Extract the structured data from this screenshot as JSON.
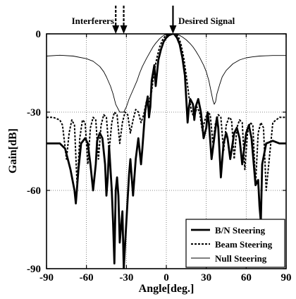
{
  "chart_data": {
    "type": "line",
    "title": "",
    "xlabel": "Angle[deg.]",
    "ylabel": "Gain[dB]",
    "xlim": [
      -90,
      90
    ],
    "ylim": [
      -90,
      0
    ],
    "xticks": [
      -90,
      -60,
      -30,
      0,
      30,
      60,
      90
    ],
    "yticks": [
      0,
      -30,
      -60,
      -90
    ],
    "xtick_labels": [
      "-90",
      "-60",
      "-30",
      "0",
      "30",
      "60",
      "90"
    ],
    "ytick_labels": [
      "0",
      "-30",
      "-60",
      "-90"
    ],
    "grid": true,
    "legend_position": "bottom-right",
    "annotations": {
      "interferers": {
        "label": "Interferers",
        "angles": [
          -38,
          -32
        ]
      },
      "desired": {
        "label": "Desired Signal",
        "angle": 5
      }
    },
    "series": [
      {
        "name": "B/N Steering",
        "style": "thick",
        "x": [
          -90,
          -80,
          -76,
          -72,
          -69,
          -68,
          -66,
          -64,
          -61,
          -59,
          -57,
          -55,
          -53,
          -52,
          -50,
          -48,
          -46,
          -45,
          -44,
          -43,
          -41,
          -40,
          -39,
          -38,
          -37,
          -36,
          -35,
          -33,
          -32,
          -30,
          -28,
          -27,
          -26,
          -25,
          -23,
          -21,
          -20,
          -19,
          -18,
          -16,
          -14,
          -13,
          -12,
          -11,
          -9,
          -8,
          -6,
          -4,
          -2,
          0,
          2,
          4,
          5,
          6,
          8,
          10,
          12,
          14,
          15,
          16,
          17,
          18,
          20,
          21,
          22,
          24,
          26,
          28,
          30,
          31,
          32,
          34,
          36,
          38,
          39,
          41,
          43,
          45,
          46,
          48,
          51,
          53,
          55,
          57,
          60,
          62,
          64,
          67,
          69,
          70,
          71,
          72,
          75,
          80,
          85,
          90
        ],
        "y": [
          -42,
          -42,
          -44,
          -52,
          -60,
          -65,
          -52,
          -42,
          -40,
          -42,
          -50,
          -60,
          -50,
          -41,
          -38,
          -40,
          -50,
          -62,
          -55,
          -43,
          -60,
          -72,
          -88,
          -60,
          -55,
          -62,
          -80,
          -68,
          -90,
          -72,
          -54,
          -48,
          -55,
          -62,
          -48,
          -40,
          -45,
          -50,
          -44,
          -30,
          -24,
          -32,
          -28,
          -18,
          -12,
          -20,
          -10,
          -6,
          -3,
          -1.5,
          -0.5,
          -0.1,
          0,
          -0.1,
          -1.5,
          -4,
          -9,
          -16,
          -25,
          -34,
          -28,
          -25,
          -27,
          -33,
          -28,
          -25,
          -30,
          -40,
          -36,
          -30,
          -34,
          -48,
          -40,
          -32,
          -36,
          -55,
          -42,
          -38,
          -40,
          -48,
          -38,
          -36,
          -40,
          -50,
          -38,
          -35,
          -40,
          -58,
          -56,
          -66,
          -72,
          -50,
          -42,
          -41,
          -42,
          -42
        ]
      },
      {
        "name": "Beam Steering",
        "style": "dashed",
        "x": [
          -90,
          -85,
          -80,
          -78,
          -75,
          -73,
          -71,
          -69,
          -67,
          -65,
          -63,
          -61,
          -59,
          -57,
          -55,
          -53,
          -51,
          -49,
          -47,
          -45,
          -43,
          -41,
          -39,
          -37,
          -35,
          -33,
          -31,
          -29,
          -27,
          -25,
          -23,
          -21,
          -19,
          -17,
          -15,
          -13,
          -11,
          -9,
          -7,
          -5,
          -3,
          -1,
          1,
          3,
          5,
          7,
          9,
          11,
          13,
          15,
          17,
          19,
          21,
          23,
          25,
          27,
          29,
          31,
          33,
          35,
          37,
          39,
          41,
          43,
          45,
          47,
          49,
          51,
          53,
          55,
          57,
          59,
          61,
          63,
          65,
          67,
          69,
          71,
          73,
          75,
          80,
          85,
          90
        ],
        "y": [
          -32,
          -32,
          -33,
          -35,
          -48,
          -38,
          -33,
          -35,
          -58,
          -40,
          -33,
          -34,
          -50,
          -36,
          -32,
          -33,
          -48,
          -35,
          -31,
          -32,
          -45,
          -34,
          -30,
          -31,
          -42,
          -34,
          -30,
          -31,
          -38,
          -33,
          -29,
          -30,
          -34,
          -31,
          -26,
          -26,
          -22,
          -14,
          -9,
          -5,
          -2.5,
          -1,
          -0.3,
          -0.05,
          0,
          -0.05,
          -1,
          -4,
          -9,
          -16,
          -24,
          -30,
          -32,
          -28,
          -30,
          -37,
          -33,
          -30,
          -31,
          -42,
          -34,
          -31,
          -32,
          -45,
          -35,
          -32,
          -33,
          -48,
          -36,
          -33,
          -34,
          -52,
          -38,
          -34,
          -35,
          -58,
          -38,
          -34,
          -36,
          -60,
          -34,
          -32,
          -32
        ]
      },
      {
        "name": "Null Steering",
        "style": "thin",
        "x": [
          -90,
          -80,
          -70,
          -60,
          -55,
          -50,
          -47,
          -45,
          -42,
          -40,
          -38,
          -35,
          -32,
          -30,
          -28,
          -25,
          -22,
          -20,
          -18,
          -15,
          -12,
          -10,
          -8,
          -5,
          -2,
          0,
          2,
          5,
          8,
          10,
          12,
          15,
          18,
          20,
          22,
          25,
          28,
          30,
          32,
          34,
          35,
          36,
          37,
          38,
          40,
          42,
          45,
          50,
          55,
          60,
          65,
          70,
          75,
          80,
          85,
          90
        ],
        "y": [
          -8.5,
          -8.2,
          -8.5,
          -9.5,
          -10.5,
          -12.5,
          -14.5,
          -16.5,
          -20,
          -23,
          -27,
          -30,
          -30,
          -28,
          -25,
          -21.5,
          -18,
          -15,
          -12.5,
          -9.5,
          -6.8,
          -5,
          -3.6,
          -1.8,
          -0.6,
          -0.2,
          -0.05,
          0,
          -0.2,
          -0.6,
          -1.2,
          -2.3,
          -3.8,
          -5,
          -6.5,
          -9,
          -12,
          -14.5,
          -18,
          -23,
          -25.5,
          -27,
          -26,
          -23,
          -19.5,
          -16.5,
          -14,
          -11.5,
          -10,
          -9.2,
          -8.8,
          -8.5,
          -8.4,
          -8.3,
          -8.3,
          -8.3
        ]
      }
    ]
  }
}
